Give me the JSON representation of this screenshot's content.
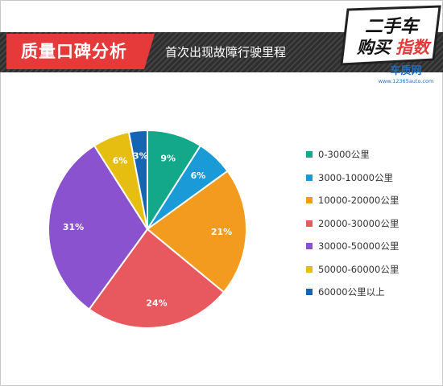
{
  "header": {
    "title": "质量口碑分析",
    "subtitle": "首次出现故障行驶里程"
  },
  "logo": {
    "line1": "二手车",
    "line2_a": "购买",
    "line2_b": "指数",
    "brand": "车质网",
    "url": "www.12365auto.com"
  },
  "chart_data": {
    "type": "pie",
    "start_angle_deg": 0,
    "direction": "clockwise",
    "slices": [
      {
        "label": "0-3000公里",
        "value": 9,
        "display": "9%",
        "color": "#13a88a"
      },
      {
        "label": "3000-10000公里",
        "value": 6,
        "display": "6%",
        "color": "#1a9ad6"
      },
      {
        "label": "10000-20000公里",
        "value": 21,
        "display": "21%",
        "color": "#f29b1e"
      },
      {
        "label": "20000-30000公里",
        "value": 24,
        "display": "24%",
        "color": "#e8595f"
      },
      {
        "label": "30000-50000公里",
        "value": 31,
        "display": "31%",
        "color": "#8b52cf"
      },
      {
        "label": "50000-60000公里",
        "value": 6,
        "display": "6%",
        "color": "#e6be12"
      },
      {
        "label": "60000公里以上",
        "value": 3,
        "display": "3%",
        "color": "#1565b5"
      }
    ],
    "legend_position": "right"
  }
}
